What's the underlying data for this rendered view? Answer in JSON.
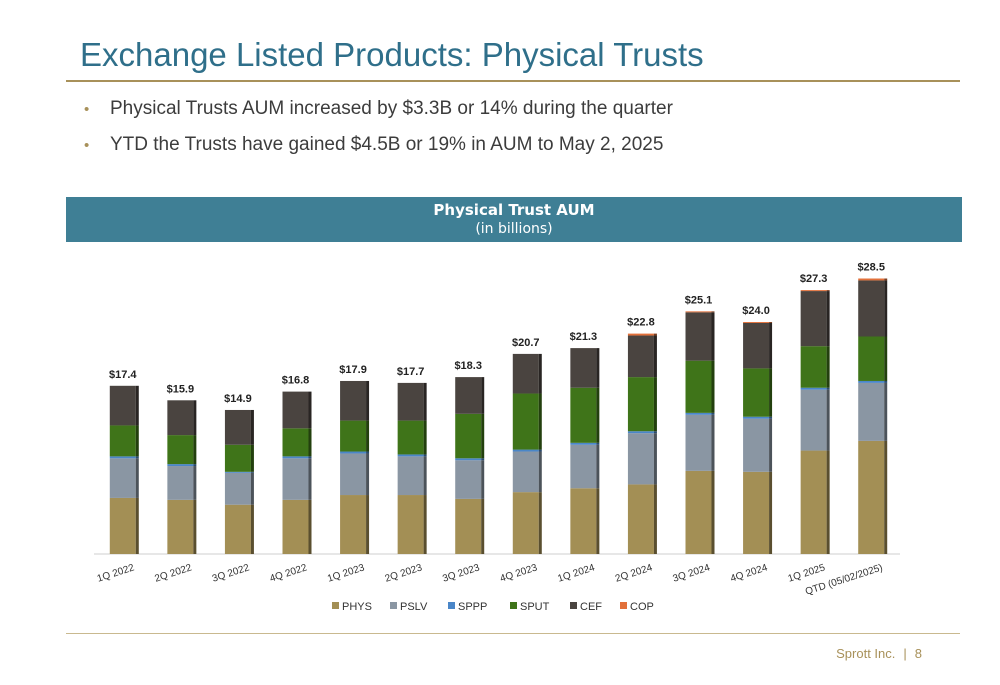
{
  "title": "Exchange Listed Products: Physical Trusts",
  "bullets": [
    "Physical Trusts AUM increased by $3.3B or 14% during the quarter",
    "YTD the Trusts have gained $4.5B or 19% in AUM to May 2, 2025"
  ],
  "footer": {
    "company": "Sprott Inc.",
    "separator": "|",
    "page": "8"
  },
  "chart_data": {
    "type": "bar",
    "stacked": true,
    "title": "Physical Trust AUM",
    "subtitle": "(in billions)",
    "categories": [
      "1Q 2022",
      "2Q 2022",
      "3Q 2022",
      "4Q 2022",
      "1Q 2023",
      "2Q 2023",
      "3Q 2023",
      "4Q 2023",
      "1Q 2024",
      "2Q 2024",
      "3Q 2024",
      "4Q 2024",
      "1Q 2025",
      "QTD (05/02/2025)"
    ],
    "totals": [
      17.4,
      15.9,
      14.9,
      16.8,
      17.9,
      17.7,
      18.3,
      20.7,
      21.3,
      22.8,
      25.1,
      24.0,
      27.3,
      28.5
    ],
    "total_labels": [
      "$17.4",
      "$15.9",
      "$14.9",
      "$16.8",
      "$17.9",
      "$17.7",
      "$18.3",
      "$20.7",
      "$21.3",
      "$22.8",
      "$25.1",
      "$24.0",
      "$27.3",
      "$28.5"
    ],
    "series": [
      {
        "name": "PHYS",
        "color": "#a38f55",
        "values": [
          5.8,
          5.6,
          5.1,
          5.6,
          6.1,
          6.1,
          5.7,
          6.4,
          6.8,
          7.2,
          8.6,
          8.5,
          10.7,
          11.7
        ]
      },
      {
        "name": "PSLV",
        "color": "#8a96a3",
        "values": [
          4.1,
          3.5,
          3.3,
          4.3,
          4.3,
          4.0,
          4.0,
          4.2,
          4.5,
          5.3,
          5.8,
          5.5,
          6.3,
          6.0
        ]
      },
      {
        "name": "SPPP",
        "color": "#4a86c8",
        "values": [
          0.2,
          0.2,
          0.1,
          0.2,
          0.2,
          0.2,
          0.2,
          0.2,
          0.2,
          0.2,
          0.2,
          0.2,
          0.2,
          0.2
        ]
      },
      {
        "name": "SPUT",
        "color": "#3f7419",
        "values": [
          3.2,
          3.0,
          2.8,
          2.9,
          3.2,
          3.5,
          4.6,
          5.8,
          5.7,
          5.6,
          5.4,
          5.0,
          4.3,
          4.6
        ]
      },
      {
        "name": "CEF",
        "color": "#4a4440",
        "values": [
          4.1,
          3.6,
          3.6,
          3.8,
          4.1,
          3.9,
          3.8,
          4.1,
          4.1,
          4.3,
          5.0,
          4.7,
          5.7,
          5.8
        ]
      },
      {
        "name": "COP",
        "color": "#e2703a",
        "values": [
          0,
          0,
          0,
          0,
          0,
          0,
          0,
          0,
          0,
          0.2,
          0.1,
          0.1,
          0.1,
          0.2
        ]
      }
    ],
    "ylim": [
      0,
      30
    ],
    "legend_position": "bottom",
    "grid": false
  }
}
